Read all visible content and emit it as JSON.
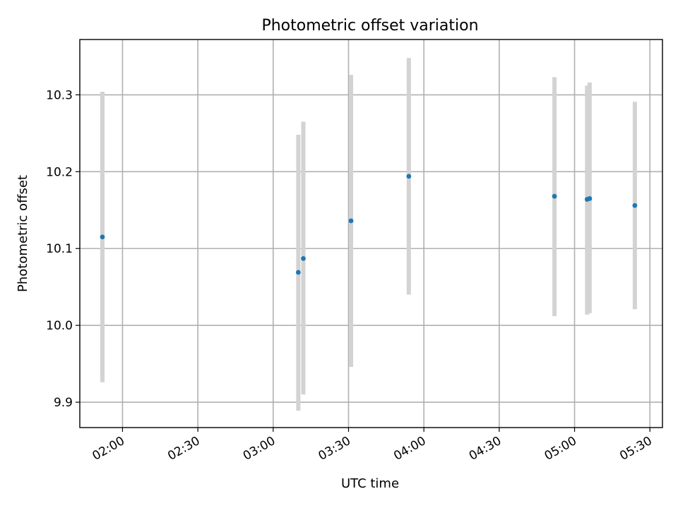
{
  "chart_data": {
    "type": "scatter",
    "title": "Photometric offset variation",
    "xlabel": "UTC time",
    "ylabel": "Photometric offset",
    "x_axis_kind": "time",
    "xlim": [
      "01:43",
      "05:35"
    ],
    "ylim": [
      9.867,
      10.372
    ],
    "x_ticks": [
      "02:00",
      "02:30",
      "03:00",
      "03:30",
      "04:00",
      "04:30",
      "05:00",
      "05:30"
    ],
    "y_ticks": [
      "9.9",
      "10.0",
      "10.1",
      "10.2",
      "10.3"
    ],
    "grid": true,
    "error_bar_color": "#d3d3d3",
    "point_color": "#1f77b4",
    "series": [
      {
        "points": [
          {
            "x": "01:52",
            "y": 10.115,
            "ylow": 9.926,
            "yhigh": 10.304
          },
          {
            "x": "03:10",
            "y": 10.069,
            "ylow": 9.889,
            "yhigh": 10.248
          },
          {
            "x": "03:12",
            "y": 10.087,
            "ylow": 9.91,
            "yhigh": 10.265
          },
          {
            "x": "03:31",
            "y": 10.136,
            "ylow": 9.946,
            "yhigh": 10.326
          },
          {
            "x": "03:54",
            "y": 10.194,
            "ylow": 10.04,
            "yhigh": 10.348
          },
          {
            "x": "04:52",
            "y": 10.168,
            "ylow": 10.012,
            "yhigh": 10.323
          },
          {
            "x": "05:05",
            "y": 10.164,
            "ylow": 10.014,
            "yhigh": 10.312
          },
          {
            "x": "05:06",
            "y": 10.165,
            "ylow": 10.016,
            "yhigh": 10.316
          },
          {
            "x": "05:24",
            "y": 10.156,
            "ylow": 10.021,
            "yhigh": 10.291
          }
        ]
      }
    ]
  }
}
